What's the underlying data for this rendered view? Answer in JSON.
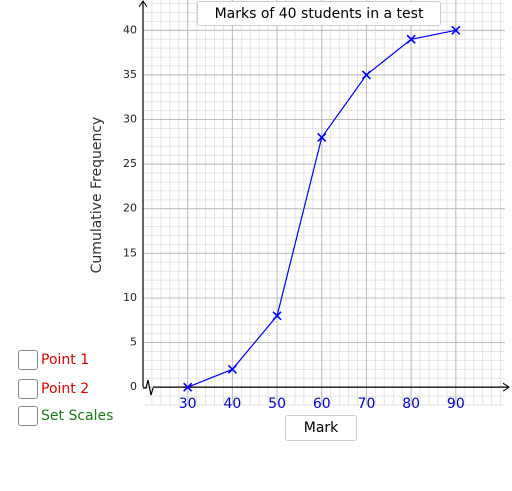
{
  "chart_data": {
    "type": "line",
    "title": "Marks of 40 students in a test",
    "xlabel": "Mark",
    "ylabel": "Cumulative Frequency",
    "x": [
      30,
      40,
      50,
      60,
      70,
      80,
      90
    ],
    "values": [
      0,
      2,
      8,
      28,
      35,
      39,
      40
    ],
    "color": "#0000ff",
    "xlim": [
      20,
      101
    ],
    "ylim": [
      -2,
      43.4
    ],
    "xticks": [
      30,
      40,
      50,
      60,
      70,
      80,
      90
    ],
    "yticks": [
      0,
      5,
      10,
      15,
      20,
      25,
      30,
      35,
      40
    ],
    "grid": true
  },
  "controls": [
    "Point 1",
    "Point 2",
    "Set Scales"
  ]
}
